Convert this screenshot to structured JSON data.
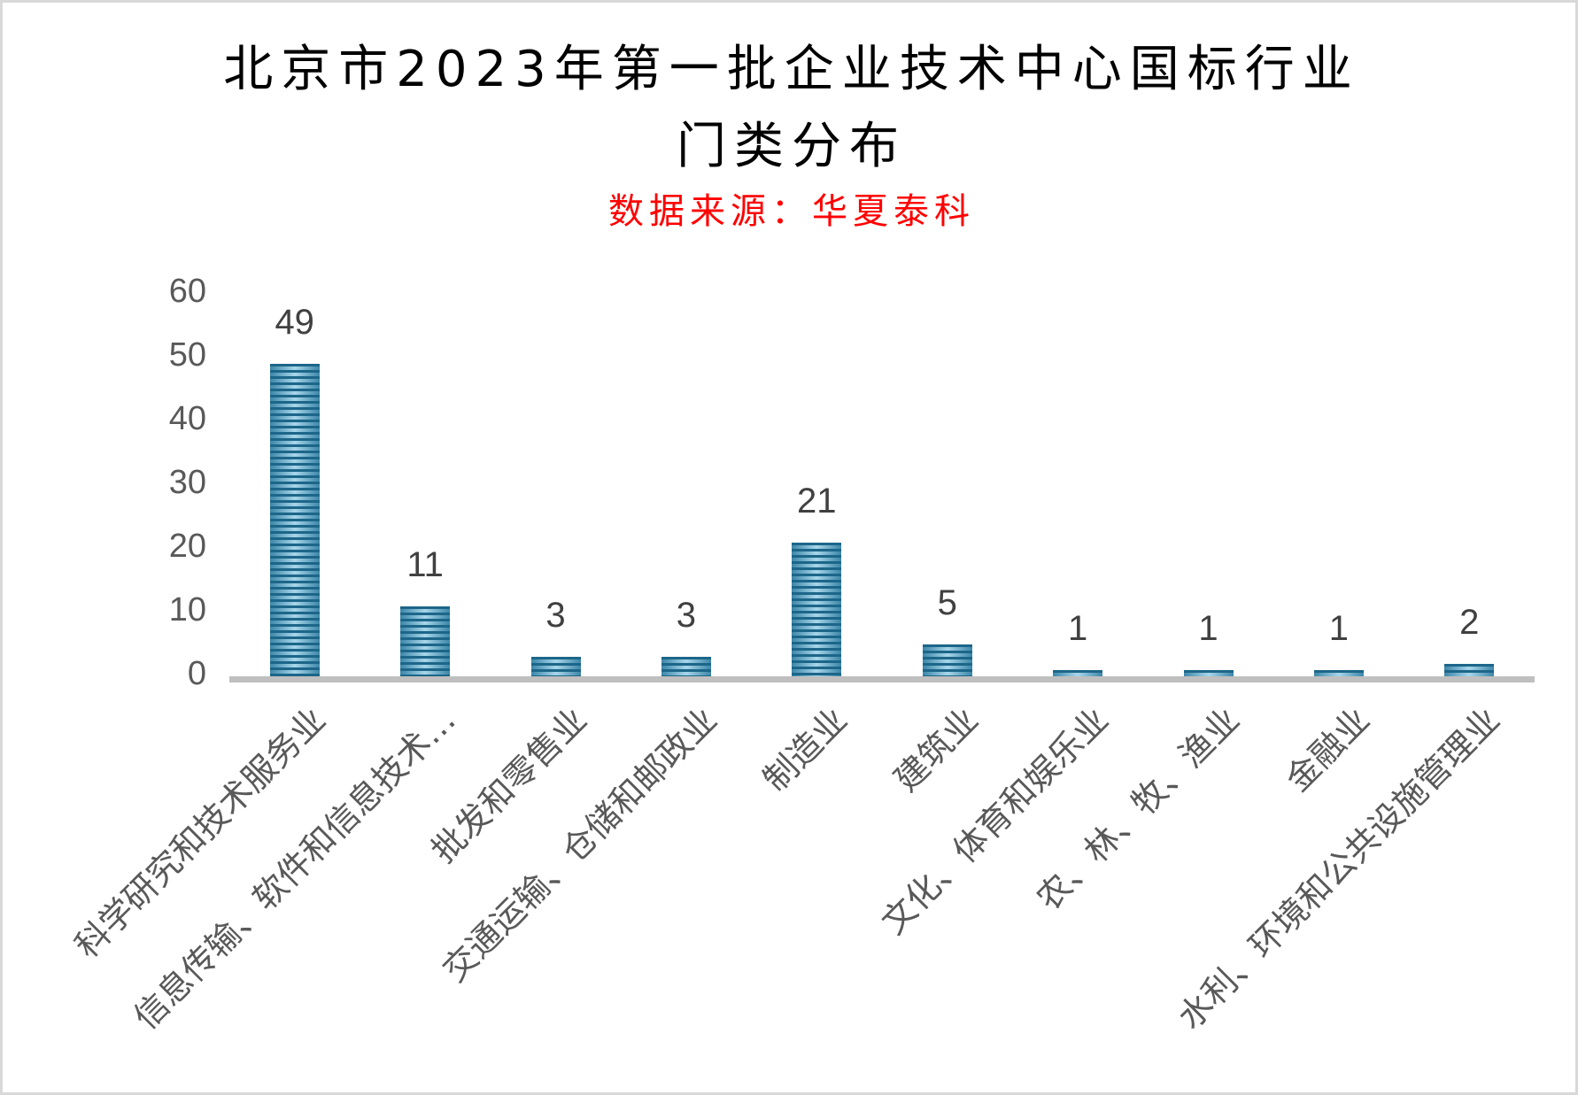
{
  "title": {
    "line1": "北京市2023年第一批企业技术中心国标行业",
    "line2": "门类分布"
  },
  "subtitle": "数据来源：华夏泰科",
  "colors": {
    "bar_dark": "#1c6689",
    "bar_light": "#a8d6ea",
    "axis": "#bfbfbf",
    "subtitle": "#ff0000",
    "tick_text": "#595959",
    "data_label_text": "#404040"
  },
  "y_axis": {
    "ticks": [
      "0",
      "10",
      "20",
      "30",
      "40",
      "50",
      "60"
    ]
  },
  "chart_data": {
    "type": "bar",
    "title": "北京市2023年第一批企业技术中心国标行业门类分布",
    "subtitle": "数据来源：华夏泰科",
    "categories": [
      "科学研究和技术服务业",
      "信息传输、软件和信息技术…",
      "批发和零售业",
      "交通运输、仓储和邮政业",
      "制造业",
      "建筑业",
      "文化、体育和娱乐业",
      "农、林、牧、渔业",
      "金融业",
      "水利、环境和公共设施管理业"
    ],
    "values": [
      49,
      11,
      3,
      3,
      21,
      5,
      1,
      1,
      1,
      2
    ],
    "data_labels": [
      "49",
      "11",
      "3",
      "3",
      "21",
      "5",
      "1",
      "1",
      "1",
      "2"
    ],
    "xlabel": "",
    "ylabel": "",
    "ylim": [
      0,
      60
    ],
    "yticks": [
      0,
      10,
      20,
      30,
      40,
      50,
      60
    ],
    "grid": false,
    "legend": null,
    "x_label_rotation": -45
  }
}
